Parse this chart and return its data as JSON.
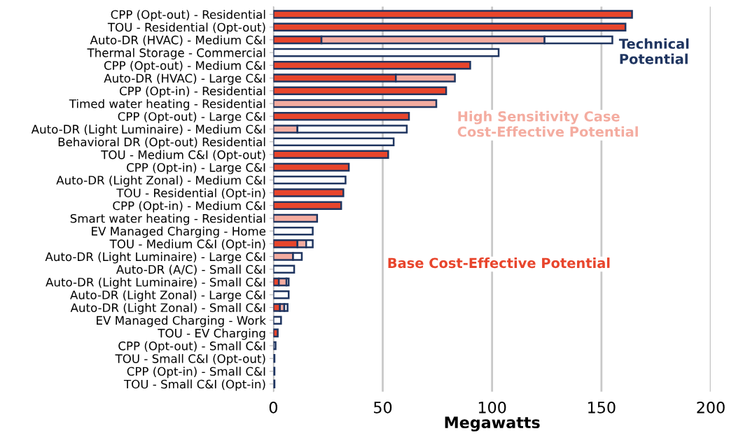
{
  "chart_data": {
    "type": "bar",
    "orientation": "horizontal",
    "xlabel": "Megawatts",
    "categories": [
      "CPP (Opt-out) - Residential",
      "TOU - Residential (Opt-out)",
      "Auto-DR (HVAC) - Medium C&I",
      "Thermal Storage - Commercial",
      "CPP (Opt-out) - Medium C&I",
      "Auto-DR (HVAC) - Large C&I",
      "CPP (Opt-in) - Residential",
      "Timed water heating - Residential",
      "CPP (Opt-out) - Large C&I",
      "Auto-DR (Light Luminaire) - Medium C&I",
      "Behavioral DR (Opt-out) Residential",
      "TOU - Medium C&I (Opt-out)",
      "CPP (Opt-in) - Large C&I",
      "Auto-DR (Light Zonal) - Medium C&I",
      "TOU - Residential (Opt-in)",
      "CPP (Opt-in) - Medium C&I",
      "Smart water heating - Residential",
      "EV Managed Charging - Home",
      "TOU - Medium C&I (Opt-in)",
      "Auto-DR (Light Luminaire) - Large C&I",
      "Auto-DR (A/C) - Small C&I",
      "Auto-DR (Light Luminaire) - Small C&I",
      "Auto-DR (Light Zonal) - Large C&I",
      "Auto-DR (Light Zonal) - Small C&I",
      "EV Managed Charging - Work",
      "TOU - EV Charging",
      "CPP (Opt-out) - Small C&I",
      "TOU - Small C&I (Opt-out)",
      "CPP (Opt-in) - Small C&I",
      "TOU - Small C&I (Opt-in)"
    ],
    "series": [
      {
        "name": "Base Cost-Effective Potential",
        "color": "#e8452c",
        "values": [
          164,
          161,
          22,
          null,
          90,
          56,
          79,
          null,
          62,
          null,
          null,
          52.5,
          34.5,
          null,
          32,
          31,
          null,
          null,
          11,
          null,
          null,
          2.5,
          null,
          3,
          null,
          2,
          null,
          null,
          null,
          null
        ]
      },
      {
        "name": "High Sensitivity Case Cost-Effective Potential",
        "color": "#f4aca0",
        "values": [
          null,
          null,
          102,
          null,
          null,
          27,
          null,
          74.5,
          null,
          11,
          null,
          null,
          null,
          null,
          null,
          null,
          20,
          null,
          4,
          9,
          null,
          3.5,
          null,
          2,
          null,
          null,
          null,
          null,
          null,
          null
        ]
      },
      {
        "name": "Technical Potential",
        "color": "#1f3560",
        "values": [
          null,
          null,
          31,
          103,
          null,
          null,
          null,
          null,
          null,
          50,
          55,
          null,
          null,
          33,
          null,
          null,
          null,
          18,
          3,
          4,
          9.5,
          1,
          7,
          1.5,
          3.5,
          null,
          1,
          0.5,
          0.5,
          0.5
        ]
      }
    ],
    "stacked": true,
    "xlim": [
      0,
      200
    ],
    "xticks": [
      0,
      50,
      100,
      150,
      200
    ],
    "grid": "x"
  }
}
